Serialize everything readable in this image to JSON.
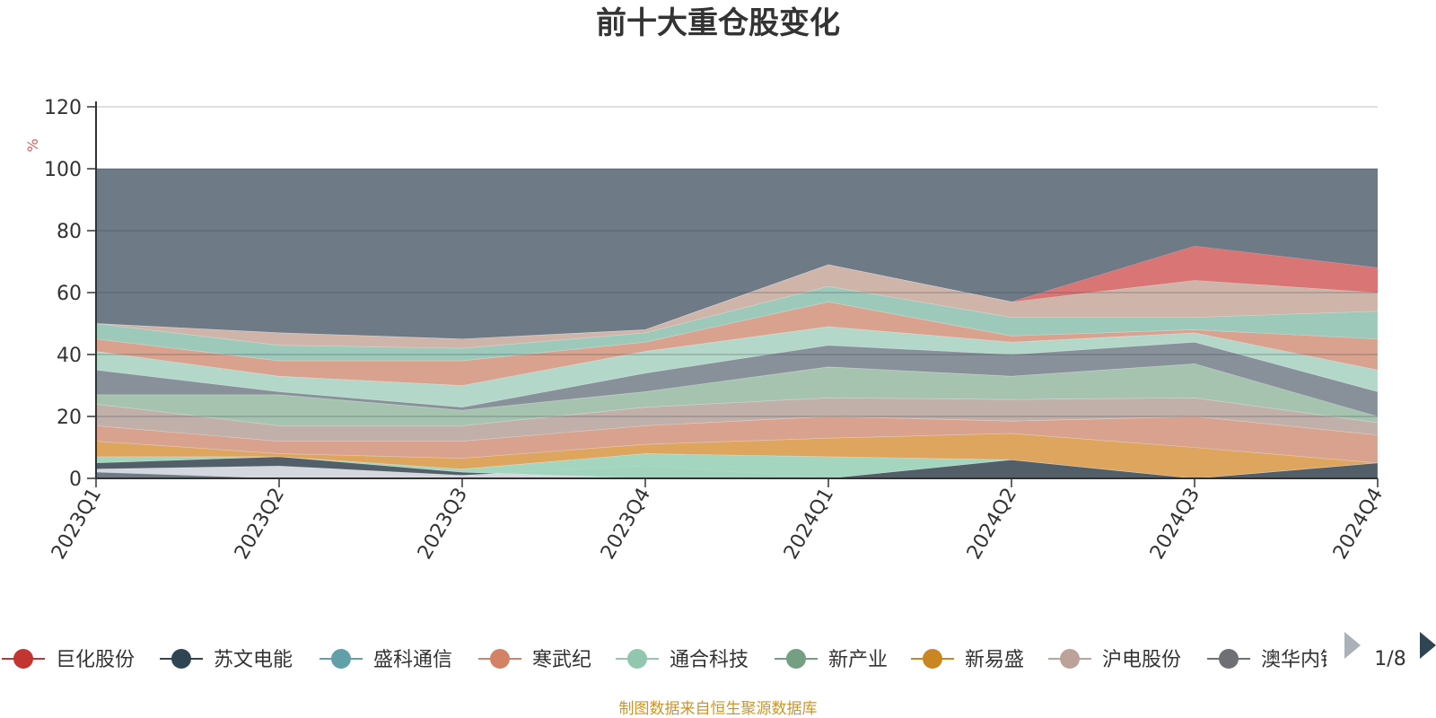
{
  "chart_data": {
    "type": "area",
    "stacked": false,
    "title": "前十大重仓股变化",
    "unit_label": "%",
    "x": [
      "2023Q1",
      "2023Q2",
      "2023Q3",
      "2023Q4",
      "2024Q1",
      "2024Q2",
      "2024Q3",
      "2024Q4"
    ],
    "ylim": [
      0,
      120
    ],
    "y_ticks": [
      0,
      20,
      40,
      60,
      80,
      100,
      120
    ],
    "grid": true,
    "background_band": {
      "value": 100,
      "color": "#6e7b86"
    },
    "layer_boundaries": [
      [
        2,
        0,
        0,
        0,
        0,
        0,
        0,
        0
      ],
      [
        3,
        4,
        1,
        4,
        0,
        0,
        0,
        0
      ],
      [
        5,
        7,
        2,
        0,
        0,
        6,
        0,
        5
      ],
      [
        7,
        7,
        3,
        8,
        7,
        6,
        0,
        5
      ],
      [
        12,
        8,
        6.5,
        11,
        13,
        14.5,
        10,
        5
      ],
      [
        17,
        12,
        12,
        17,
        20,
        18.5,
        20,
        14
      ],
      [
        24,
        17,
        17,
        23,
        26,
        25.5,
        26,
        18
      ],
      [
        27,
        27,
        22,
        28,
        36,
        33,
        37,
        20
      ],
      [
        35,
        28,
        23,
        34,
        43,
        40,
        44,
        28
      ],
      [
        41,
        33,
        30,
        41,
        49,
        44,
        47,
        35
      ],
      [
        45,
        38,
        38,
        44,
        57,
        46,
        48,
        45
      ],
      [
        50,
        43,
        42,
        47,
        62,
        52,
        52,
        54
      ],
      [
        50,
        47,
        45,
        48,
        69,
        57,
        64,
        60
      ],
      [
        50,
        47,
        45,
        48,
        69,
        57,
        75,
        68
      ]
    ],
    "layer_colors": [
      "#dcdfe6",
      "#4f5b66",
      "#a8dcc3",
      "#e6a85a",
      "#e2a58f",
      "#c8b4ac",
      "#a9c9b3",
      "#8a939c",
      "#b8e0cf",
      "#e2a58f",
      "#9fcfbf",
      "#d6b9ad",
      "#d9dde4"
    ],
    "series": [
      {
        "name": "巨化股份",
        "color": "#c23531"
      },
      {
        "name": "苏文电能",
        "color": "#2f4554"
      },
      {
        "name": "盛科通信",
        "color": "#61a0a8"
      },
      {
        "name": "寒武纪",
        "color": "#d48265"
      },
      {
        "name": "通合科技",
        "color": "#91c7ae"
      },
      {
        "name": "新产业",
        "color": "#749f83"
      },
      {
        "name": "新易盛",
        "color": "#ca8622"
      },
      {
        "name": "沪电股份",
        "color": "#bda29a"
      },
      {
        "name": "澳华内镜",
        "color": "#6e7074"
      }
    ]
  },
  "legend": {
    "page_indicator": "1/8",
    "prev_icon": "triangle-left-icon",
    "next_icon": "triangle-right-icon"
  },
  "footer": {
    "source": "制图数据来自恒生聚源数据库"
  }
}
